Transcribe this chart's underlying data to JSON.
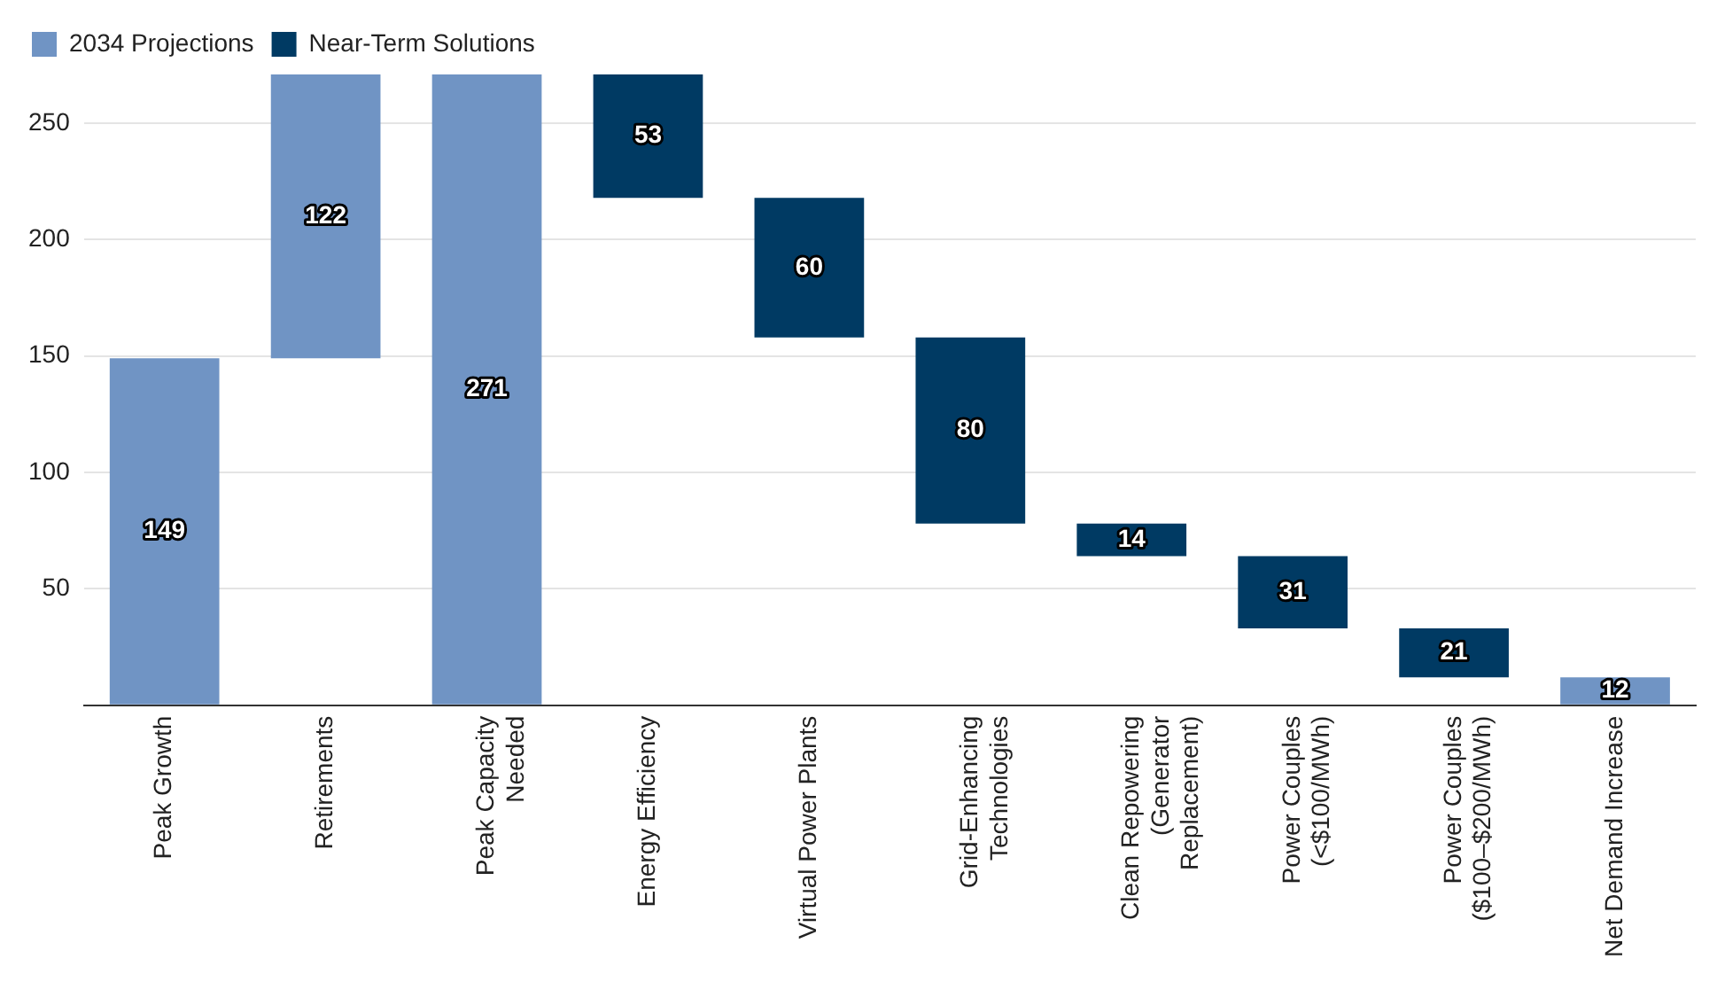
{
  "chart_data": {
    "type": "bar",
    "categories": [
      "Peak Growth",
      "Retirements",
      "Peak Capacity\nNeeded",
      "Energy Efficiency",
      "Virtual Power Plants",
      "Grid-Enhancing\nTechnologies",
      "Clean Repowering\n(Generator\nReplacement)",
      "Power Couples\n(<$100/MWh)",
      "Power Couples\n($100–$200/MWh)",
      "Net Demand Increase"
    ],
    "series": [
      {
        "name": "2034 Projections",
        "color": "#7094c4",
        "values": [
          149,
          122,
          271,
          null,
          null,
          null,
          null,
          null,
          null,
          12
        ],
        "base": [
          0,
          149,
          0,
          null,
          null,
          null,
          null,
          null,
          null,
          0
        ]
      },
      {
        "name": "Near-Term Solutions",
        "color": "#003a63",
        "values": [
          null,
          null,
          null,
          53,
          60,
          80,
          14,
          31,
          21,
          null
        ],
        "base": [
          null,
          null,
          null,
          218,
          158,
          78,
          64,
          33,
          12,
          null
        ]
      }
    ],
    "ylim": [
      0,
      271
    ],
    "yticks": [
      {
        "value": 0,
        "label": null
      },
      50,
      100,
      150,
      200,
      250
    ],
    "grid": "y",
    "legend": "top left",
    "data_labels": true
  }
}
